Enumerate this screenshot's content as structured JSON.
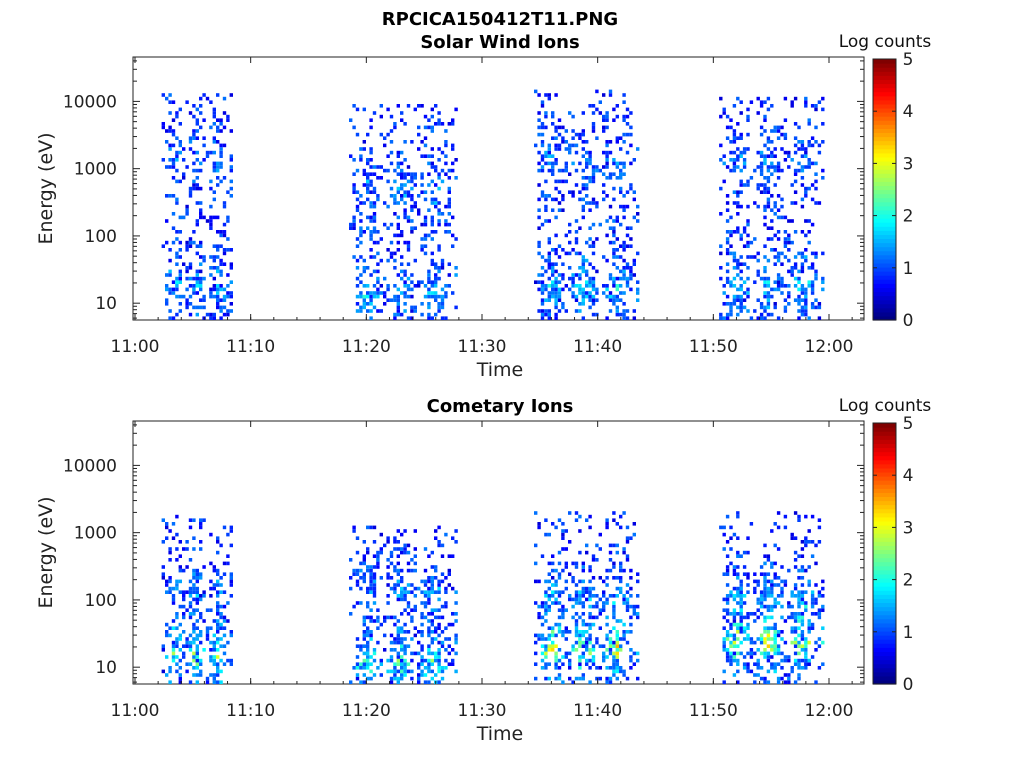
{
  "figure_title": "RPCICA150412T11.PNG",
  "chart_data": [
    {
      "type": "heatmap",
      "title": "Solar Wind Ions",
      "xlabel": "Time",
      "ylabel": "Energy (eV)",
      "x_ticks": [
        "11:00",
        "11:10",
        "11:20",
        "11:30",
        "11:40",
        "11:50",
        "12:00"
      ],
      "y_ticks": [
        "10",
        "100",
        "1000",
        "10000"
      ],
      "y_scale": "log",
      "colorbar": {
        "label": "Log counts",
        "ticks": [
          "0",
          "1",
          "2",
          "3",
          "4",
          "5"
        ],
        "range": [
          0,
          5
        ]
      },
      "bursts": [
        {
          "start_min": 2.3,
          "end_min": 8.4,
          "core_energy_ev": [
            1500,
            20
          ],
          "peak_log_counts": 2.0,
          "max_energy_ev": 14000
        },
        {
          "start_min": 18.5,
          "end_min": 27.7,
          "core_energy_ev": [
            500,
            15
          ],
          "peak_log_counts": 2.2,
          "max_energy_ev": 10000
        },
        {
          "start_min": 34.5,
          "end_min": 43.5,
          "core_energy_ev": [
            1300,
            18
          ],
          "peak_log_counts": 2.3,
          "max_energy_ev": 16000
        },
        {
          "start_min": 50.5,
          "end_min": 59.5,
          "core_energy_ev": [
            1400,
            20
          ],
          "peak_log_counts": 2.4,
          "max_energy_ev": 12000
        }
      ]
    },
    {
      "type": "heatmap",
      "title": "Cometary Ions",
      "xlabel": "Time",
      "ylabel": "Energy (eV)",
      "x_ticks": [
        "11:00",
        "11:10",
        "11:20",
        "11:30",
        "11:40",
        "11:50",
        "12:00"
      ],
      "y_ticks": [
        "10",
        "100",
        "1000",
        "10000"
      ],
      "y_scale": "log",
      "colorbar": {
        "label": "Log counts",
        "ticks": [
          "0",
          "1",
          "2",
          "3",
          "4",
          "5"
        ],
        "range": [
          0,
          5
        ]
      },
      "bursts": [
        {
          "start_min": 2.3,
          "end_min": 8.4,
          "core_energy_ev": [
            150,
            15
          ],
          "peak_log_counts": 3.3,
          "max_energy_ev": 2300
        },
        {
          "start_min": 18.5,
          "end_min": 27.7,
          "core_energy_ev": [
            150,
            12
          ],
          "peak_log_counts": 3.0,
          "max_energy_ev": 1300
        },
        {
          "start_min": 34.5,
          "end_min": 43.5,
          "core_energy_ev": [
            120,
            20
          ],
          "peak_log_counts": 3.8,
          "max_energy_ev": 2300
        },
        {
          "start_min": 50.5,
          "end_min": 59.5,
          "core_energy_ev": [
            130,
            25
          ],
          "peak_log_counts": 3.9,
          "max_energy_ev": 2300
        }
      ]
    }
  ]
}
